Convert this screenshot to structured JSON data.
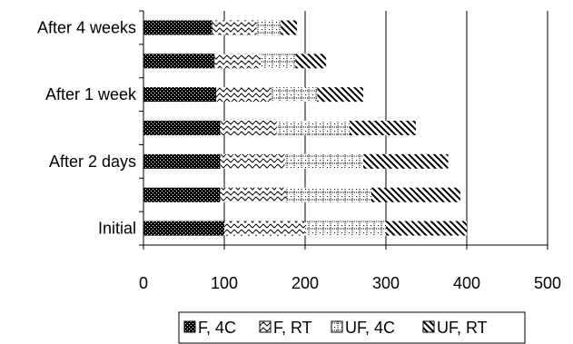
{
  "chart_data": {
    "type": "bar",
    "orientation": "horizontal",
    "stacked": true,
    "categories": [
      "Initial",
      "",
      "After 2 days",
      "",
      "After 1 week",
      "",
      "After 4 weeks"
    ],
    "series": [
      {
        "name": "F, 4C",
        "values": [
          100,
          95,
          95,
          95,
          90,
          88,
          85
        ],
        "pattern": "dots-dense"
      },
      {
        "name": "F, RT",
        "values": [
          100,
          82,
          80,
          70,
          68,
          57,
          55
        ],
        "pattern": "wavy"
      },
      {
        "name": "UF, 4C",
        "values": [
          100,
          105,
          97,
          90,
          57,
          43,
          30
        ],
        "pattern": "crosshatch"
      },
      {
        "name": "UF, RT",
        "values": [
          100,
          110,
          105,
          82,
          57,
          38,
          20
        ],
        "pattern": "diagonal"
      }
    ],
    "xlim": [
      0,
      500
    ],
    "xticks": [
      "0",
      "100",
      "200",
      "300",
      "400",
      "500"
    ],
    "xgrid": true,
    "legend_position": "bottom",
    "colors": {
      "axis": "#000000",
      "grid": "#000000",
      "fill": "#000000",
      "background": "#ffffff"
    }
  }
}
